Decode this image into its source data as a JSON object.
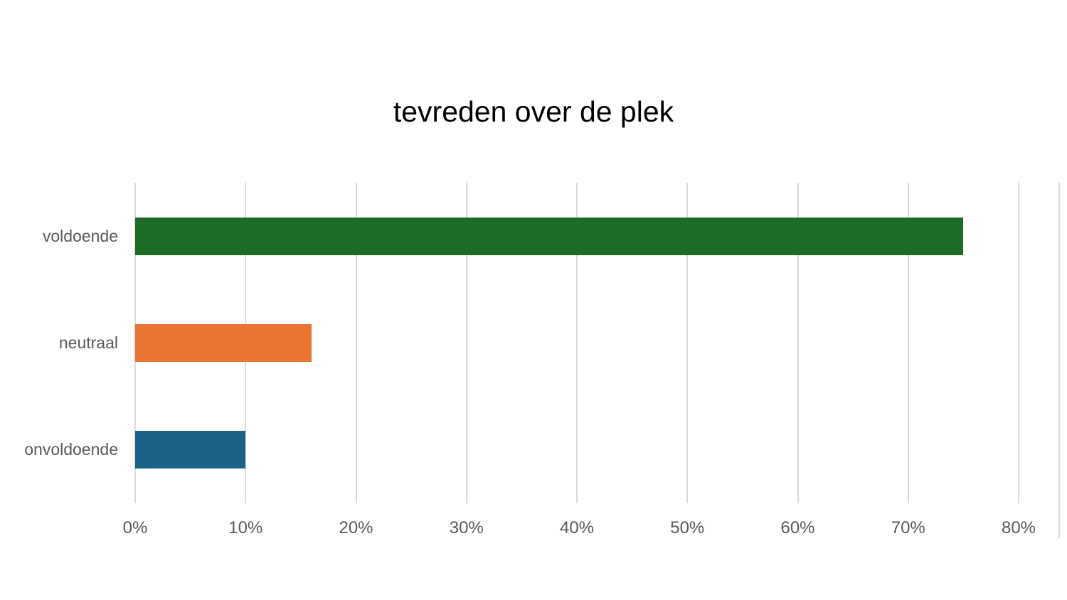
{
  "title": "tevreden over de plek",
  "chart_data": {
    "type": "bar",
    "orientation": "horizontal",
    "title": "tevreden over de plek",
    "categories": [
      "voldoende",
      "neutraal",
      "onvoldoende"
    ],
    "values": [
      75,
      16,
      10
    ],
    "value_unit": "%",
    "bar_colors": [
      "#1C6B27",
      "#E97532",
      "#1A6385"
    ],
    "xlabel": "",
    "ylabel": "",
    "x_ticks": [
      {
        "value": 0,
        "label": "0%"
      },
      {
        "value": 10,
        "label": "10%"
      },
      {
        "value": 20,
        "label": "20%"
      },
      {
        "value": 30,
        "label": "30%"
      },
      {
        "value": 40,
        "label": "40%"
      },
      {
        "value": 50,
        "label": "50%"
      },
      {
        "value": 60,
        "label": "60%"
      },
      {
        "value": 70,
        "label": "70%"
      },
      {
        "value": 80,
        "label": "80%"
      }
    ],
    "xlim": [
      0,
      83.7
    ],
    "grid": true,
    "legend": false
  },
  "colors": {
    "background": "#FFFFFF",
    "gridline": "#D9D9D9",
    "axis_label": "#595959",
    "title": "#000000"
  }
}
